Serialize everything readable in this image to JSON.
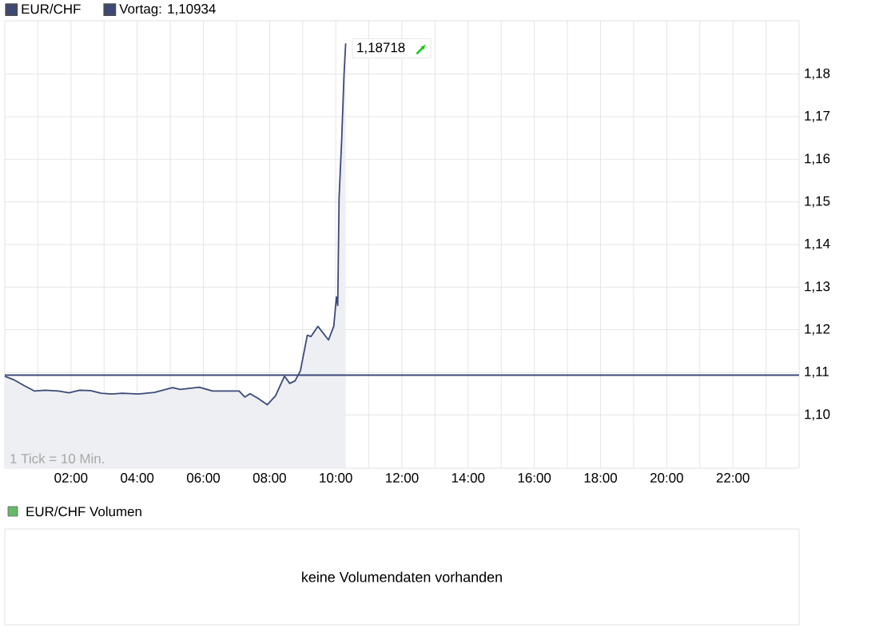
{
  "chart_data": {
    "type": "area",
    "x": [
      0.0,
      0.26,
      0.58,
      0.9,
      1.22,
      1.62,
      1.94,
      2.26,
      2.59,
      2.91,
      3.23,
      3.55,
      4.03,
      4.52,
      5.07,
      5.3,
      5.88,
      6.28,
      7.08,
      7.25,
      7.41,
      7.65,
      7.93,
      8.18,
      8.45,
      8.61,
      8.77,
      8.93,
      9.14,
      9.25,
      9.46,
      9.78,
      9.94,
      10.02,
      10.06,
      10.1,
      10.18,
      10.25,
      10.3
    ],
    "series": [
      {
        "name": "EUR/CHF",
        "color": "#3c4a78",
        "values": [
          1.1091,
          1.1083,
          1.1069,
          1.1056,
          1.1058,
          1.1056,
          1.1052,
          1.1058,
          1.1057,
          1.1051,
          1.1049,
          1.1051,
          1.1049,
          1.1053,
          1.1064,
          1.106,
          1.1065,
          1.1056,
          1.1056,
          1.1042,
          1.105,
          1.1039,
          1.1024,
          1.1045,
          1.1091,
          1.1074,
          1.108,
          1.1103,
          1.1187,
          1.1184,
          1.1208,
          1.1176,
          1.1208,
          1.1277,
          1.1257,
          1.1509,
          1.1648,
          1.1799,
          1.1872
        ]
      }
    ],
    "xlim": [
      0,
      24
    ],
    "ylim": [
      1.0875,
      1.1925
    ],
    "xticks": [
      {
        "value": 1,
        "label": null
      },
      {
        "value": 2,
        "label": "02:00"
      },
      {
        "value": 3,
        "label": null
      },
      {
        "value": 4,
        "label": "04:00"
      },
      {
        "value": 5,
        "label": null
      },
      {
        "value": 6,
        "label": "06:00"
      },
      {
        "value": 7,
        "label": null
      },
      {
        "value": 8,
        "label": "08:00"
      },
      {
        "value": 9,
        "label": null
      },
      {
        "value": 10,
        "label": "10:00"
      },
      {
        "value": 11,
        "label": null
      },
      {
        "value": 12,
        "label": "12:00"
      },
      {
        "value": 13,
        "label": null
      },
      {
        "value": 14,
        "label": "14:00"
      },
      {
        "value": 15,
        "label": null
      },
      {
        "value": 16,
        "label": "16:00"
      },
      {
        "value": 17,
        "label": null
      },
      {
        "value": 18,
        "label": "18:00"
      },
      {
        "value": 19,
        "label": null
      },
      {
        "value": 20,
        "label": "20:00"
      },
      {
        "value": 21,
        "label": null
      },
      {
        "value": 22,
        "label": "22:00"
      },
      {
        "value": 23,
        "label": null
      }
    ],
    "yticks": [
      {
        "value": 1.1,
        "label": "1,10"
      },
      {
        "value": 1.11,
        "label": "1,11"
      },
      {
        "value": 1.12,
        "label": "1,12"
      },
      {
        "value": 1.13,
        "label": "1,13"
      },
      {
        "value": 1.14,
        "label": "1,14"
      },
      {
        "value": 1.15,
        "label": "1,15"
      },
      {
        "value": 1.16,
        "label": "1,16"
      },
      {
        "value": 1.17,
        "label": "1,17"
      },
      {
        "value": 1.18,
        "label": "1,18"
      }
    ],
    "ref_lines": [
      {
        "axis": "y",
        "value": 1.10934,
        "label": "Vortag: 1,10934",
        "color": "#3c4a78"
      }
    ],
    "annotations": [
      {
        "text": "1,18718",
        "x": 10.3,
        "y": 1.18718
      },
      "1 Tick = 10 Min.",
      "EUR/CHF Volumen",
      "keine Volumendaten vorhanden"
    ],
    "grid": true,
    "legend": "top left",
    "marker": "none",
    "line_style": "solid"
  }
}
